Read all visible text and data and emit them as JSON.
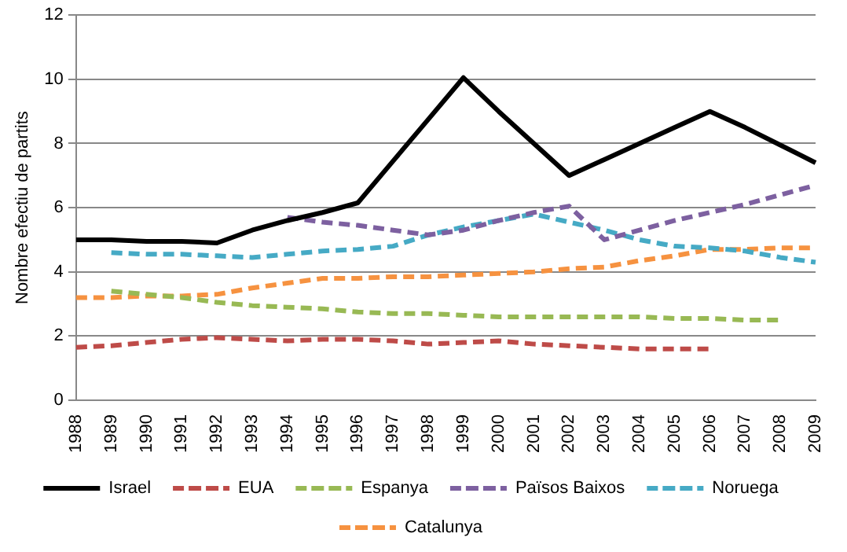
{
  "chart_data": {
    "type": "line",
    "ylabel": "Nombre efectiu de partits",
    "categories": [
      "1988",
      "1989",
      "1990",
      "1991",
      "1992",
      "1993",
      "1994",
      "1995",
      "1996",
      "1997",
      "1998",
      "1999",
      "2000",
      "2001",
      "2002",
      "2003",
      "2004",
      "2005",
      "2006",
      "2007",
      "2008",
      "2009"
    ],
    "ylim": [
      0,
      12
    ],
    "yticks": [
      0,
      2,
      4,
      6,
      8,
      10,
      12
    ],
    "grid": "y",
    "legend": "bottom",
    "marker": "none",
    "series": [
      {
        "name": "Israel",
        "color": "#000000",
        "line_style": "solid",
        "values": [
          5.0,
          5.0,
          4.95,
          4.95,
          4.9,
          5.3,
          5.6,
          5.85,
          6.15,
          7.45,
          8.75,
          10.05,
          9.0,
          8.0,
          7.0,
          7.5,
          8.0,
          8.5,
          9.0,
          8.5,
          7.95,
          7.4
        ]
      },
      {
        "name": "EUA",
        "color": "#be4b48",
        "line_style": "dashed",
        "values": [
          1.65,
          1.7,
          1.8,
          1.9,
          1.95,
          1.9,
          1.85,
          1.9,
          1.9,
          1.85,
          1.75,
          1.8,
          1.85,
          1.75,
          1.7,
          1.65,
          1.6,
          1.6,
          1.6,
          null,
          null,
          null
        ]
      },
      {
        "name": "Espanya",
        "color": "#98b954",
        "line_style": "dashed",
        "values": [
          null,
          3.4,
          3.3,
          3.2,
          3.05,
          2.95,
          2.9,
          2.85,
          2.75,
          2.7,
          2.7,
          2.65,
          2.6,
          2.6,
          2.6,
          2.6,
          2.6,
          2.55,
          2.55,
          2.5,
          2.5,
          null
        ]
      },
      {
        "name": "Països Baixos",
        "color": "#7d60a0",
        "line_style": "dashed",
        "values": [
          null,
          null,
          null,
          null,
          null,
          null,
          5.7,
          5.55,
          5.45,
          5.3,
          5.15,
          5.3,
          5.6,
          5.85,
          6.05,
          5.0,
          5.3,
          5.6,
          5.85,
          6.1,
          6.4,
          6.7
        ]
      },
      {
        "name": "Noruega",
        "color": "#46aac5",
        "line_style": "dashed",
        "values": [
          null,
          4.6,
          4.55,
          4.55,
          4.5,
          4.45,
          4.55,
          4.65,
          4.7,
          4.8,
          5.15,
          5.4,
          5.6,
          5.8,
          5.55,
          5.3,
          5.0,
          4.8,
          4.75,
          4.65,
          4.45,
          4.3
        ]
      },
      {
        "name": "Catalunya",
        "color": "#f69240",
        "line_style": "dashed",
        "values": [
          3.2,
          3.2,
          3.25,
          3.25,
          3.3,
          3.5,
          3.65,
          3.8,
          3.8,
          3.85,
          3.85,
          3.9,
          3.95,
          4.0,
          4.1,
          4.15,
          4.35,
          4.5,
          4.7,
          4.7,
          4.75,
          4.75
        ]
      }
    ]
  }
}
